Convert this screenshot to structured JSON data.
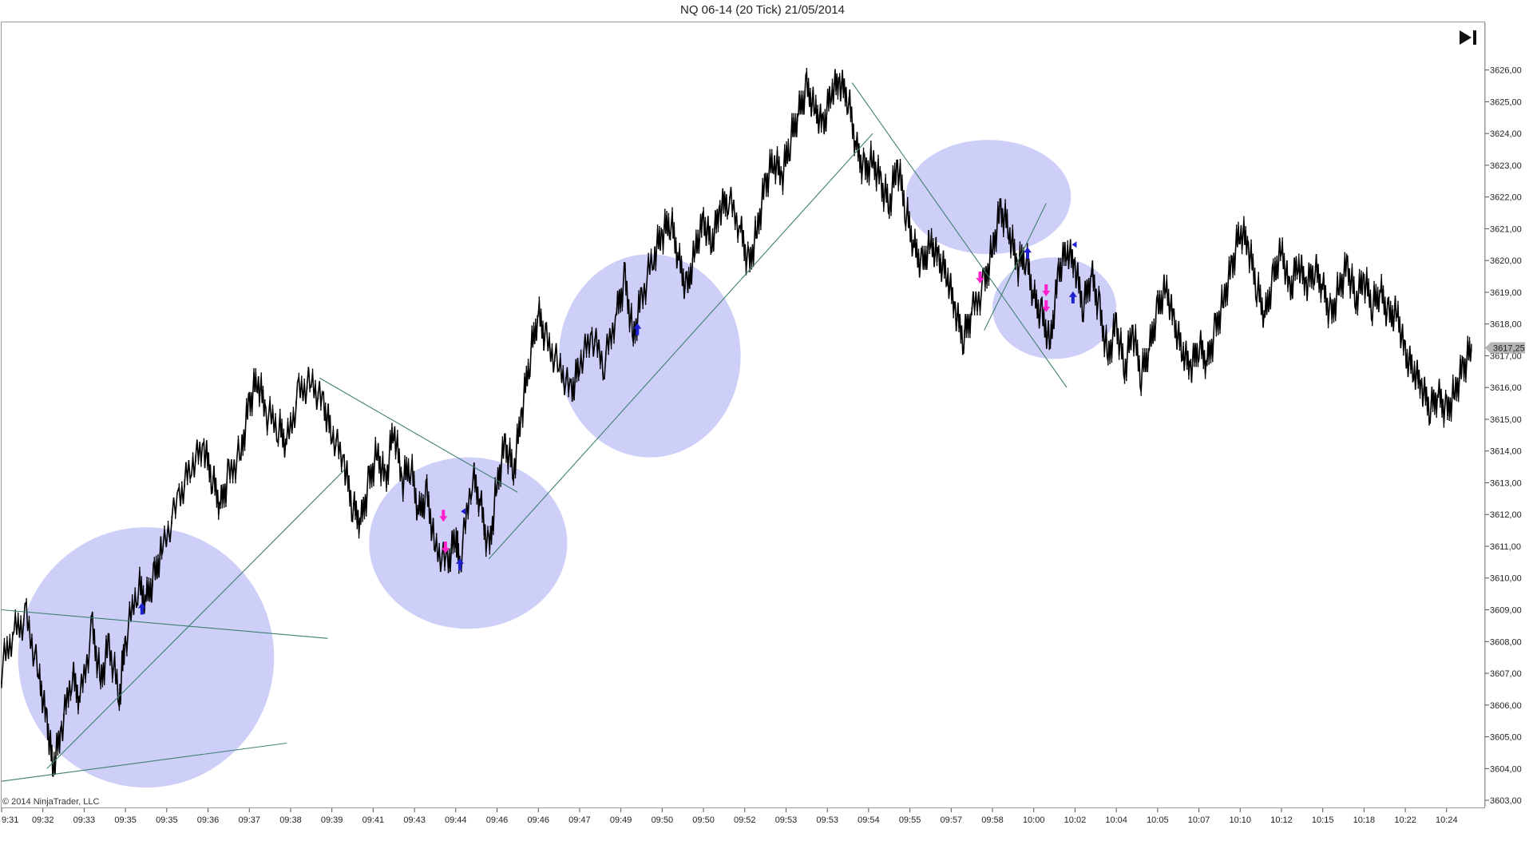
{
  "window": {
    "title": "NQ 06-14 (20 Tick)  21/05/2014"
  },
  "footer": {
    "copyright": "© 2014 NinjaTrader, LLC"
  },
  "toolbar": {
    "go_to_end_icon": "skip-to-end-icon"
  },
  "colors": {
    "price_bar": "#000000",
    "trend_line": "#3f7f6f",
    "highlight_ellipse": "#c8caf8",
    "buy_marker": "#1e22cc",
    "sell_marker": "#ff22cc",
    "last_price_badge": "#b4b4b4"
  },
  "chart_data": {
    "type": "line",
    "instrument": "NQ 06-14",
    "bar_type": "20 Tick",
    "date": "21/05/2014",
    "x_tick_labels": [
      "9:31",
      "09:32",
      "09:33",
      "09:35",
      "09:35",
      "09:36",
      "09:37",
      "09:38",
      "09:39",
      "09:41",
      "09:43",
      "09:44",
      "09:46",
      "09:46",
      "09:47",
      "09:49",
      "09:50",
      "09:50",
      "09:52",
      "09:53",
      "09:53",
      "09:54",
      "09:55",
      "09:57",
      "09:58",
      "10:00",
      "10:02",
      "10:04",
      "10:05",
      "10:07",
      "10:10",
      "10:12",
      "10:15",
      "10:18",
      "10:22",
      "10:24"
    ],
    "y_tick_labels": [
      "3603,00",
      "3604,00",
      "3605,00",
      "3606,00",
      "3607,00",
      "3608,00",
      "3609,00",
      "3610,00",
      "3611,00",
      "3612,00",
      "3613,00",
      "3614,00",
      "3615,00",
      "3616,00",
      "3617,00",
      "3618,00",
      "3619,00",
      "3620,00",
      "3621,00",
      "3622,00",
      "3623,00",
      "3624,00",
      "3625,00",
      "3626,00"
    ],
    "ylim": [
      3602.8,
      3627.5
    ],
    "xlim": [
      0,
      35.7
    ],
    "last_price_label": "3617,25",
    "series": [
      {
        "points": [
          [
            0,
            3607.2
          ],
          [
            0.3,
            3608.3
          ],
          [
            0.6,
            3608.7
          ],
          [
            0.9,
            3607.0
          ],
          [
            1.1,
            3605.4
          ],
          [
            1.25,
            3604.1
          ],
          [
            1.45,
            3605.2
          ],
          [
            1.7,
            3607.0
          ],
          [
            1.9,
            3606.2
          ],
          [
            2.2,
            3608.4
          ],
          [
            2.4,
            3606.8
          ],
          [
            2.6,
            3607.9
          ],
          [
            2.85,
            3606.3
          ],
          [
            3.0,
            3608.0
          ],
          [
            3.3,
            3609.8
          ],
          [
            3.5,
            3609.3
          ],
          [
            3.7,
            3610.0
          ],
          [
            3.9,
            3611.0
          ],
          [
            4.3,
            3612.5
          ],
          [
            4.6,
            3613.6
          ],
          [
            4.9,
            3614.1
          ],
          [
            5.1,
            3613.2
          ],
          [
            5.3,
            3612.3
          ],
          [
            5.5,
            3613.2
          ],
          [
            5.8,
            3614.0
          ],
          [
            6.0,
            3615.5
          ],
          [
            6.2,
            3616.3
          ],
          [
            6.4,
            3615.2
          ],
          [
            6.7,
            3614.8
          ],
          [
            6.9,
            3614.2
          ],
          [
            7.2,
            3615.8
          ],
          [
            7.5,
            3616.2
          ],
          [
            7.8,
            3615.4
          ],
          [
            8.0,
            3614.6
          ],
          [
            8.3,
            3613.6
          ],
          [
            8.5,
            3612.3
          ],
          [
            8.7,
            3611.8
          ],
          [
            8.9,
            3613.0
          ],
          [
            9.1,
            3614.0
          ],
          [
            9.3,
            3613.0
          ],
          [
            9.5,
            3614.8
          ],
          [
            9.7,
            3613.0
          ],
          [
            9.9,
            3613.6
          ],
          [
            10.1,
            3612.0
          ],
          [
            10.3,
            3612.6
          ],
          [
            10.5,
            3611.0
          ],
          [
            10.8,
            3610.4
          ],
          [
            11.0,
            3611.4
          ],
          [
            11.1,
            3610.4
          ],
          [
            11.4,
            3613.3
          ],
          [
            11.6,
            3612.4
          ],
          [
            11.8,
            3610.8
          ],
          [
            12.0,
            3613.0
          ],
          [
            12.2,
            3614.2
          ],
          [
            12.4,
            3613.4
          ],
          [
            12.6,
            3615.2
          ],
          [
            12.8,
            3617.0
          ],
          [
            13.0,
            3618.3
          ],
          [
            13.2,
            3617.4
          ],
          [
            13.5,
            3616.7
          ],
          [
            13.8,
            3615.8
          ],
          [
            14.0,
            3616.8
          ],
          [
            14.3,
            3617.6
          ],
          [
            14.6,
            3616.8
          ],
          [
            14.9,
            3618.4
          ],
          [
            15.1,
            3619.4
          ],
          [
            15.3,
            3617.6
          ],
          [
            15.5,
            3618.8
          ],
          [
            15.8,
            3620.2
          ],
          [
            16.0,
            3620.8
          ],
          [
            16.2,
            3621.3
          ],
          [
            16.4,
            3620.0
          ],
          [
            16.6,
            3619.0
          ],
          [
            16.8,
            3620.4
          ],
          [
            17.0,
            3621.2
          ],
          [
            17.2,
            3620.6
          ],
          [
            17.4,
            3621.6
          ],
          [
            17.6,
            3622.0
          ],
          [
            17.9,
            3621.0
          ],
          [
            18.1,
            3619.8
          ],
          [
            18.3,
            3621.0
          ],
          [
            18.5,
            3622.4
          ],
          [
            18.7,
            3623.2
          ],
          [
            18.9,
            3622.6
          ],
          [
            19.1,
            3623.8
          ],
          [
            19.3,
            3624.6
          ],
          [
            19.5,
            3625.4
          ],
          [
            19.7,
            3624.8
          ],
          [
            19.9,
            3624.2
          ],
          [
            20.1,
            3625.4
          ],
          [
            20.3,
            3625.6
          ],
          [
            20.5,
            3625.2
          ],
          [
            20.7,
            3623.6
          ],
          [
            20.9,
            3622.8
          ],
          [
            21.1,
            3623.2
          ],
          [
            21.3,
            3622.4
          ],
          [
            21.5,
            3621.8
          ],
          [
            21.7,
            3623.0
          ],
          [
            21.9,
            3621.6
          ],
          [
            22.1,
            3620.4
          ],
          [
            22.3,
            3619.8
          ],
          [
            22.5,
            3620.6
          ],
          [
            22.7,
            3620.0
          ],
          [
            22.9,
            3619.6
          ],
          [
            23.1,
            3618.4
          ],
          [
            23.3,
            3617.6
          ],
          [
            23.5,
            3618.4
          ],
          [
            23.8,
            3619.2
          ],
          [
            24.0,
            3620.4
          ],
          [
            24.2,
            3621.6
          ],
          [
            24.4,
            3621.0
          ],
          [
            24.6,
            3619.8
          ],
          [
            24.8,
            3620.2
          ],
          [
            25.0,
            3618.8
          ],
          [
            25.2,
            3618.2
          ],
          [
            25.4,
            3617.4
          ],
          [
            25.6,
            3619.6
          ],
          [
            25.8,
            3620.4
          ],
          [
            26.0,
            3619.8
          ],
          [
            26.2,
            3618.6
          ],
          [
            26.4,
            3619.6
          ],
          [
            26.6,
            3618.4
          ],
          [
            26.8,
            3617.0
          ],
          [
            27.0,
            3618.0
          ],
          [
            27.2,
            3616.6
          ],
          [
            27.4,
            3617.8
          ],
          [
            27.6,
            3616.4
          ],
          [
            27.8,
            3617.2
          ],
          [
            28.0,
            3618.4
          ],
          [
            28.2,
            3619.2
          ],
          [
            28.4,
            3618.0
          ],
          [
            28.6,
            3617.2
          ],
          [
            28.8,
            3616.6
          ],
          [
            29.0,
            3617.4
          ],
          [
            29.2,
            3616.8
          ],
          [
            29.4,
            3617.8
          ],
          [
            29.6,
            3618.8
          ],
          [
            29.8,
            3619.8
          ],
          [
            30.0,
            3621.0
          ],
          [
            30.2,
            3620.4
          ],
          [
            30.4,
            3619.2
          ],
          [
            30.6,
            3618.2
          ],
          [
            30.8,
            3619.4
          ],
          [
            31.0,
            3620.4
          ],
          [
            31.2,
            3619.0
          ],
          [
            31.4,
            3620.0
          ],
          [
            31.6,
            3619.2
          ],
          [
            31.8,
            3619.8
          ],
          [
            32.0,
            3619.2
          ],
          [
            32.2,
            3618.2
          ],
          [
            32.4,
            3619.2
          ],
          [
            32.6,
            3619.8
          ],
          [
            32.8,
            3618.8
          ],
          [
            33.0,
            3619.4
          ],
          [
            33.2,
            3618.6
          ],
          [
            33.4,
            3619.0
          ],
          [
            33.6,
            3618.2
          ],
          [
            33.8,
            3618.4
          ],
          [
            34.0,
            3617.0
          ],
          [
            34.2,
            3616.6
          ],
          [
            34.4,
            3616.0
          ],
          [
            34.6,
            3615.4
          ],
          [
            34.8,
            3615.8
          ],
          [
            35.0,
            3615.2
          ],
          [
            35.2,
            3615.9
          ],
          [
            35.4,
            3616.6
          ],
          [
            35.6,
            3617.25
          ]
        ]
      }
    ],
    "trend_lines": [
      {
        "x1": 0,
        "y1": 3603.6,
        "x2": 6.9,
        "y2": 3604.8
      },
      {
        "x1": 0,
        "y1": 3609.0,
        "x2": 7.9,
        "y2": 3608.1
      },
      {
        "x1": 1.1,
        "y1": 3604.0,
        "x2": 8.3,
        "y2": 3613.4
      },
      {
        "x1": 7.7,
        "y1": 3616.3,
        "x2": 12.5,
        "y2": 3612.7
      },
      {
        "x1": 11.8,
        "y1": 3610.6,
        "x2": 21.1,
        "y2": 3624.0
      },
      {
        "x1": 20.6,
        "y1": 3625.6,
        "x2": 25.8,
        "y2": 3616.0
      },
      {
        "x1": 23.8,
        "y1": 3617.8,
        "x2": 25.3,
        "y2": 3621.8
      }
    ],
    "highlight_ellipses": [
      {
        "cx": 3.5,
        "cy": 3607.5,
        "rx": 3.1,
        "ry": 4.1
      },
      {
        "cx": 11.3,
        "cy": 3611.1,
        "rx": 2.4,
        "ry": 2.7
      },
      {
        "cx": 15.7,
        "cy": 3617.0,
        "rx": 2.2,
        "ry": 3.2
      },
      {
        "cx": 23.9,
        "cy": 3622.0,
        "rx": 2.0,
        "ry": 1.8
      },
      {
        "cx": 25.5,
        "cy": 3618.5,
        "rx": 1.5,
        "ry": 1.6
      }
    ],
    "markers": [
      {
        "x": 3.4,
        "y": 3609.0,
        "kind": "buy",
        "label": ""
      },
      {
        "x": 10.7,
        "y": 3612.0,
        "kind": "sell",
        "label": ""
      },
      {
        "x": 10.75,
        "y": 3611.0,
        "kind": "sell",
        "label": ""
      },
      {
        "x": 11.1,
        "y": 3610.4,
        "kind": "buy",
        "label": ""
      },
      {
        "x": 11.2,
        "y": 3612.1,
        "kind": "buy-tri",
        "label": ""
      },
      {
        "x": 15.4,
        "y": 3617.8,
        "kind": "buy",
        "label": ""
      },
      {
        "x": 23.7,
        "y": 3619.5,
        "kind": "sell",
        "label": ""
      },
      {
        "x": 24.85,
        "y": 3620.2,
        "kind": "buy",
        "label": ""
      },
      {
        "x": 25.3,
        "y": 3619.1,
        "kind": "sell",
        "label": ""
      },
      {
        "x": 25.3,
        "y": 3618.6,
        "kind": "sell",
        "label": ""
      },
      {
        "x": 25.95,
        "y": 3618.8,
        "kind": "buy",
        "label": ""
      },
      {
        "x": 26.0,
        "y": 3620.5,
        "kind": "buy-tri",
        "label": ""
      }
    ],
    "grid": false,
    "legend": "none"
  }
}
